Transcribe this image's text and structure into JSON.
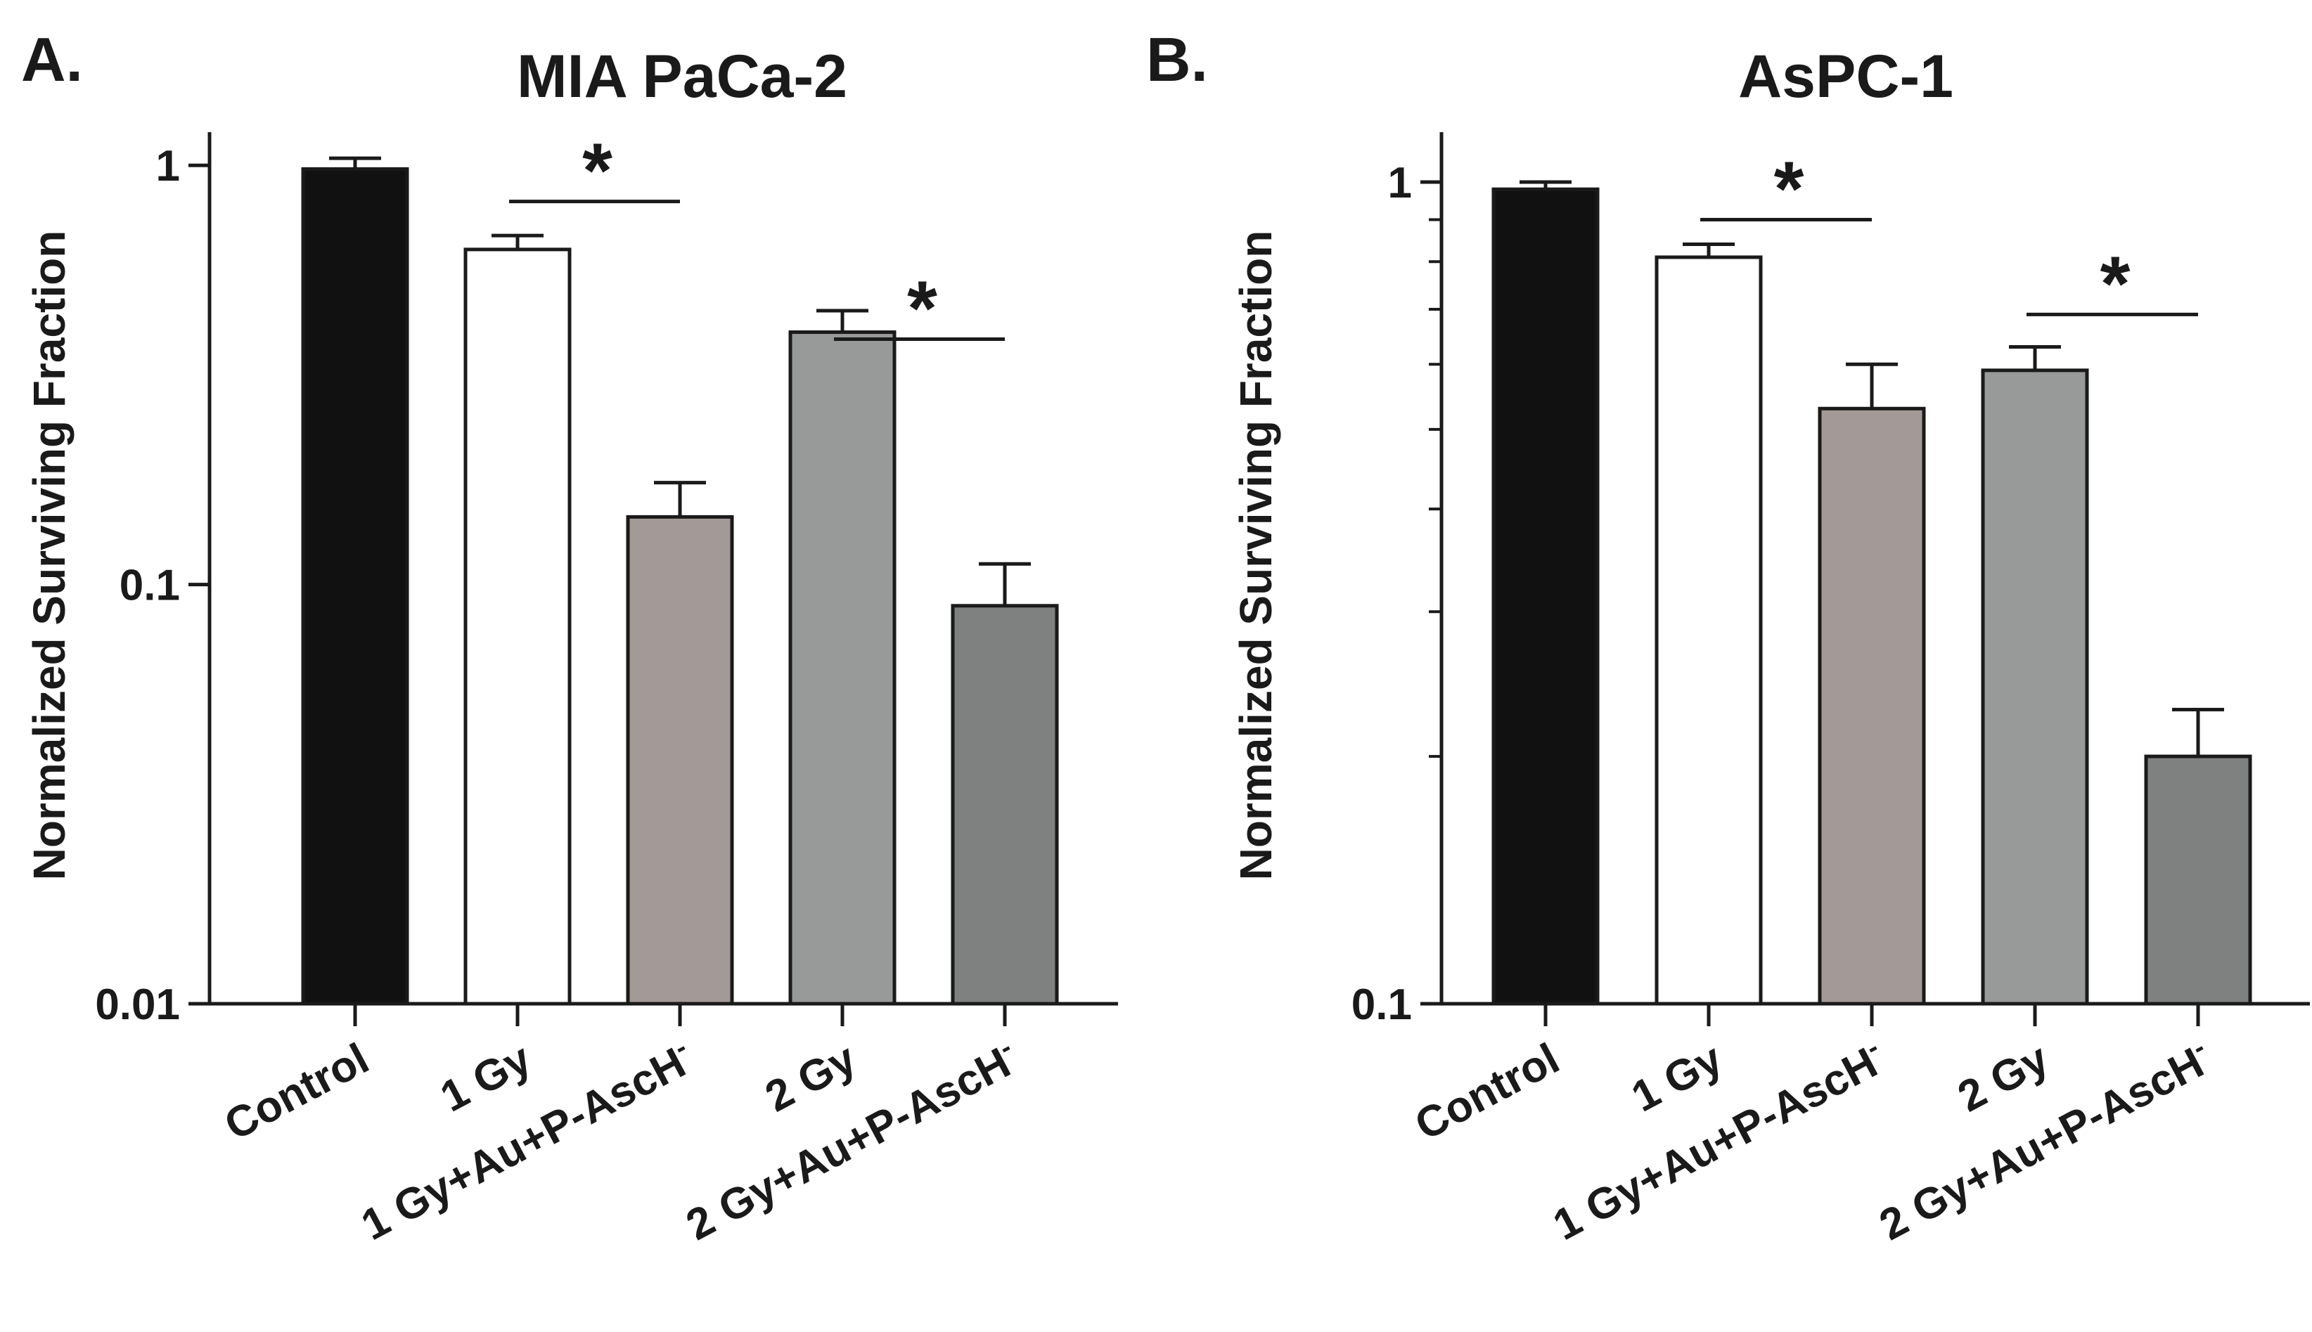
{
  "chart_data": [
    {
      "type": "bar",
      "panel_label": "A.",
      "title": "MIA PaCa-2",
      "ylabel": "Normalized Surviving Fraction",
      "xlabel": "",
      "yscale": "log",
      "ylim": [
        0.01,
        1.2
      ],
      "yticks": [
        {
          "value": 1,
          "label": "1"
        },
        {
          "value": 0.1,
          "label": "0.1"
        },
        {
          "value": 0.01,
          "label": "0.01"
        }
      ],
      "minor_ticks": [],
      "categories": [
        {
          "main": "Control",
          "sup": ""
        },
        {
          "main": "1 Gy",
          "sup": ""
        },
        {
          "main": "1 Gy+Au+P-AscH",
          "sup": "-"
        },
        {
          "main": "2 Gy",
          "sup": ""
        },
        {
          "main": "2 Gy+Au+P-AscH",
          "sup": "-"
        }
      ],
      "values": [
        0.98,
        0.63,
        0.145,
        0.4,
        0.089
      ],
      "errors": [
        1.04,
        0.68,
        0.175,
        0.45,
        0.112
      ],
      "colors": [
        "#111111",
        "#ffffff",
        "#a39a98",
        "#989a9a",
        "#7f8180"
      ],
      "significance": [
        {
          "from": 1,
          "to": 2,
          "y": 0.82,
          "label": "*"
        },
        {
          "from": 3,
          "to": 4,
          "y": 0.385,
          "label": "*"
        }
      ]
    },
    {
      "type": "bar",
      "panel_label": "B.",
      "title": "AsPC-1",
      "ylabel": "Normalized Surviving Fraction",
      "xlabel": "",
      "yscale": "log",
      "ylim": [
        0.1,
        1.15
      ],
      "yticks": [
        {
          "value": 1,
          "label": "1"
        },
        {
          "value": 0.1,
          "label": "0.1"
        }
      ],
      "minor_ticks": [
        0.2,
        0.3,
        0.4,
        0.5,
        0.6,
        0.7,
        0.8,
        0.9
      ],
      "categories": [
        {
          "main": "Control",
          "sup": ""
        },
        {
          "main": "1 Gy",
          "sup": ""
        },
        {
          "main": "1 Gy+Au+P-AscH",
          "sup": "-"
        },
        {
          "main": "2 Gy",
          "sup": ""
        },
        {
          "main": "2 Gy+Au+P-AscH",
          "sup": "-"
        }
      ],
      "values": [
        0.98,
        0.81,
        0.53,
        0.59,
        0.2
      ],
      "errors": [
        1.0,
        0.84,
        0.6,
        0.63,
        0.228
      ],
      "colors": [
        "#111111",
        "#ffffff",
        "#a39a98",
        "#989a9a",
        "#7f8180"
      ],
      "significance": [
        {
          "from": 1,
          "to": 2,
          "y": 0.9,
          "label": "*"
        },
        {
          "from": 3,
          "to": 4,
          "y": 0.69,
          "label": "*"
        }
      ]
    }
  ]
}
